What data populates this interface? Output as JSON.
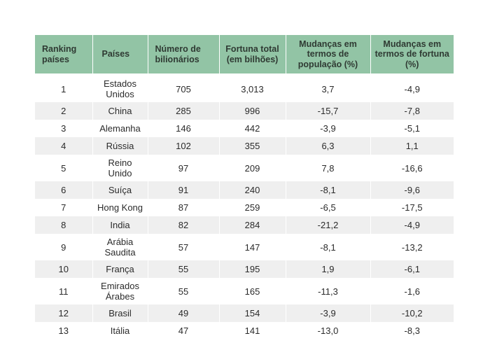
{
  "headers": [
    "Ranking países",
    "Países",
    "Número de bilionários",
    "Fortuna total (em bilhões)",
    "Mudanças em termos de população (%)",
    "Mudanças em termos de fortuna (%)"
  ],
  "rows": [
    [
      "1",
      "Estados Unidos",
      "705",
      "3,013",
      "3,7",
      "-4,9"
    ],
    [
      "2",
      "China",
      "285",
      "996",
      "-15,7",
      "-7,8"
    ],
    [
      "3",
      "Alemanha",
      "146",
      "442",
      "-3,9",
      "-5,1"
    ],
    [
      "4",
      "Rússia",
      "102",
      "355",
      "6,3",
      "1,1"
    ],
    [
      "5",
      "Reino Unido",
      "97",
      "209",
      "7,8",
      "-16,6"
    ],
    [
      "6",
      "Suíça",
      "91",
      "240",
      "-8,1",
      "-9,6"
    ],
    [
      "7",
      "Hong Kong",
      "87",
      "259",
      "-6,5",
      "-17,5"
    ],
    [
      "8",
      "India",
      "82",
      "284",
      "-21,2",
      "-4,9"
    ],
    [
      "9",
      "Arábia Saudita",
      "57",
      "147",
      "-8,1",
      "-13,2"
    ],
    [
      "10",
      "França",
      "55",
      "195",
      "1,9",
      "-6,1"
    ],
    [
      "11",
      "Emirados Árabes",
      "55",
      "165",
      "-11,3",
      "-1,6"
    ],
    [
      "12",
      "Brasil",
      "49",
      "154",
      "-3,9",
      "-10,2"
    ],
    [
      "13",
      "Itália",
      "47",
      "141",
      "-13,0",
      "-8,3"
    ]
  ]
}
